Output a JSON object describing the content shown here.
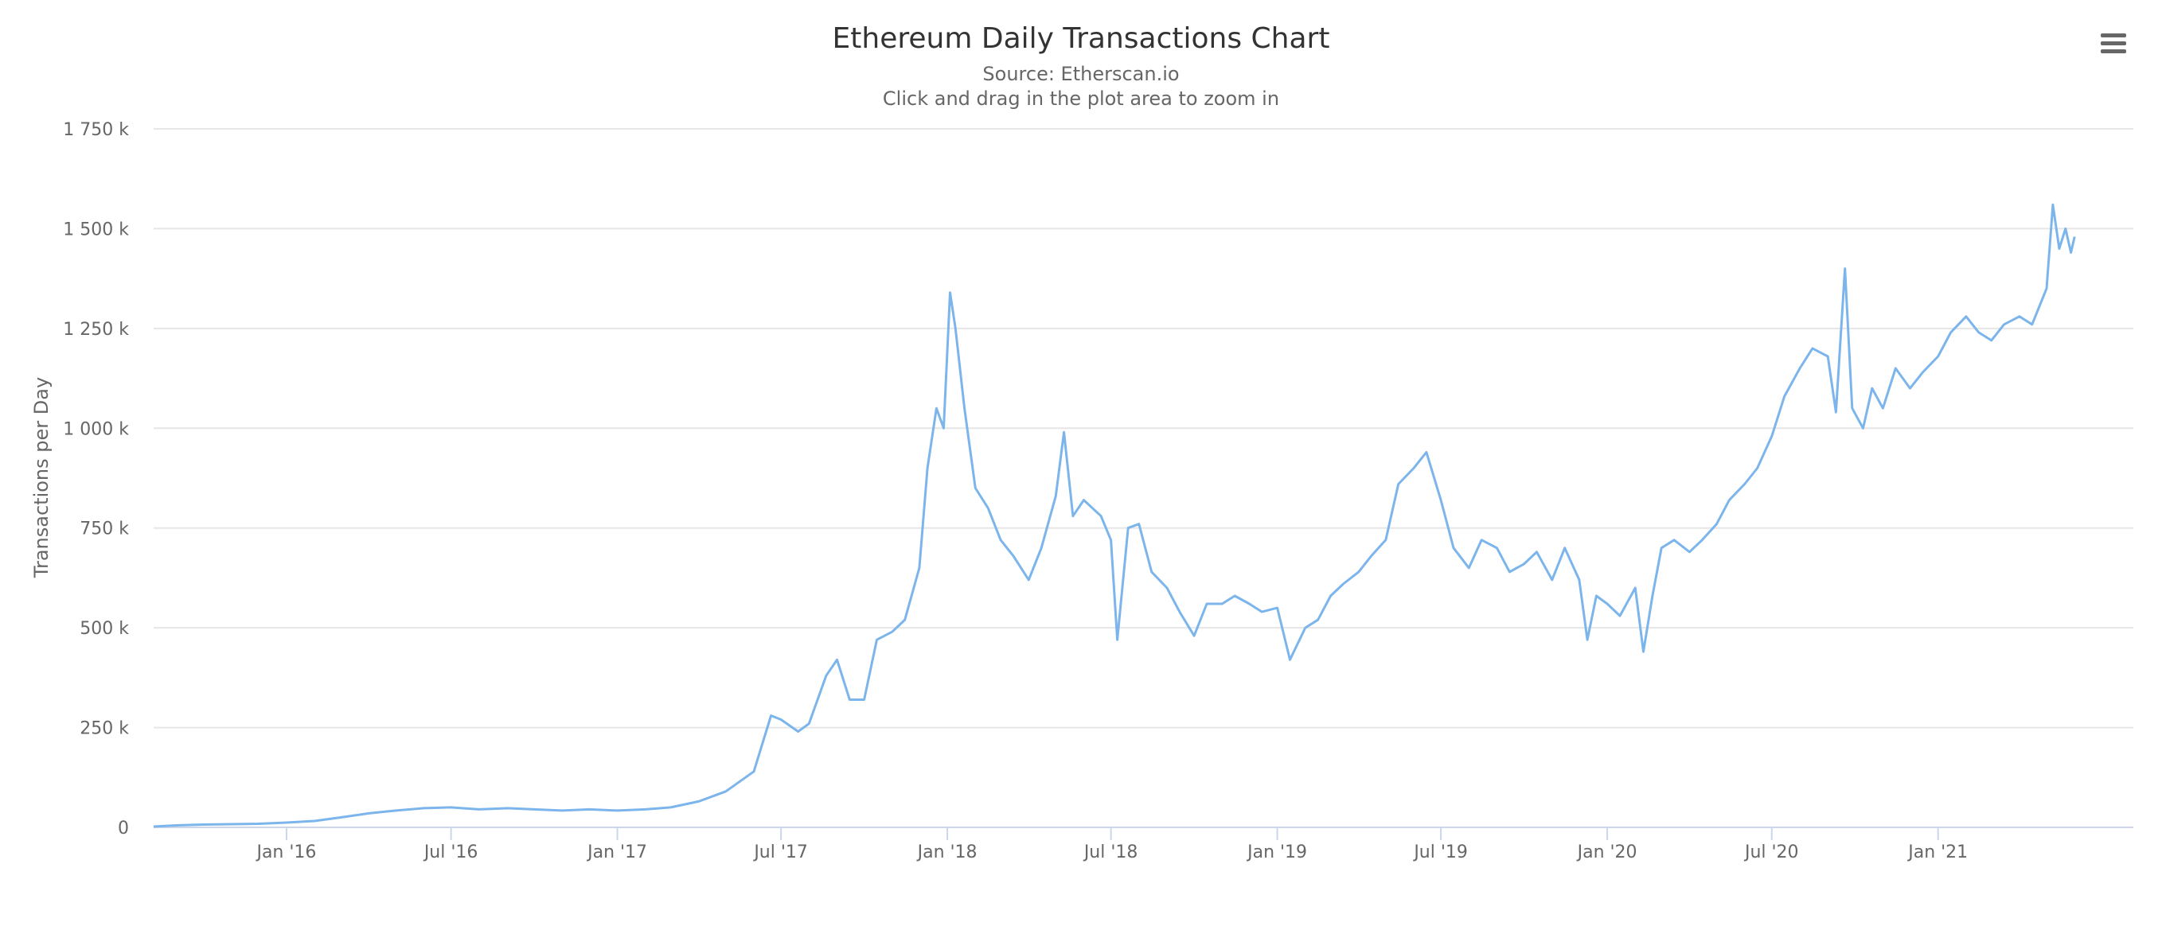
{
  "chart_data": {
    "type": "line",
    "title": "Ethereum Daily Transactions Chart",
    "subtitle": "Source: Etherscan.io",
    "hint": "Click and drag in the plot area to zoom in",
    "xlabel": "",
    "ylabel": "Transactions per Day",
    "ylim": [
      0,
      1750000
    ],
    "xlim": [
      "2015-08-07",
      "2021-08-05"
    ],
    "grid": true,
    "legend": "none",
    "color": "#7cb5ec",
    "y_ticks": [
      {
        "value": 0,
        "label": "0"
      },
      {
        "value": 250000,
        "label": "250 k"
      },
      {
        "value": 500000,
        "label": "500 k"
      },
      {
        "value": 750000,
        "label": "750 k"
      },
      {
        "value": 1000000,
        "label": "1 000 k"
      },
      {
        "value": 1250000,
        "label": "1 250 k"
      },
      {
        "value": 1500000,
        "label": "1 500 k"
      },
      {
        "value": 1750000,
        "label": "1 750 k"
      }
    ],
    "x_ticks": [
      {
        "date": "2016-01-01",
        "label": "Jan '16"
      },
      {
        "date": "2016-07-01",
        "label": "Jul '16"
      },
      {
        "date": "2017-01-01",
        "label": "Jan '17"
      },
      {
        "date": "2017-07-01",
        "label": "Jul '17"
      },
      {
        "date": "2018-01-01",
        "label": "Jan '18"
      },
      {
        "date": "2018-07-01",
        "label": "Jul '18"
      },
      {
        "date": "2019-01-01",
        "label": "Jan '19"
      },
      {
        "date": "2019-07-01",
        "label": "Jul '19"
      },
      {
        "date": "2020-01-01",
        "label": "Jan '20"
      },
      {
        "date": "2020-07-01",
        "label": "Jul '20"
      },
      {
        "date": "2021-01-01",
        "label": "Jan '21"
      }
    ],
    "series": [
      {
        "name": "",
        "points": [
          [
            "2015-08-07",
            2000
          ],
          [
            "2015-09-01",
            5000
          ],
          [
            "2015-10-01",
            7000
          ],
          [
            "2015-11-01",
            8000
          ],
          [
            "2015-12-01",
            9000
          ],
          [
            "2016-01-01",
            12000
          ],
          [
            "2016-02-01",
            16000
          ],
          [
            "2016-03-01",
            25000
          ],
          [
            "2016-04-01",
            35000
          ],
          [
            "2016-05-01",
            42000
          ],
          [
            "2016-06-01",
            48000
          ],
          [
            "2016-07-01",
            50000
          ],
          [
            "2016-08-01",
            45000
          ],
          [
            "2016-09-01",
            48000
          ],
          [
            "2016-10-01",
            45000
          ],
          [
            "2016-11-01",
            42000
          ],
          [
            "2016-12-01",
            45000
          ],
          [
            "2017-01-01",
            42000
          ],
          [
            "2017-02-01",
            45000
          ],
          [
            "2017-03-01",
            50000
          ],
          [
            "2017-04-01",
            65000
          ],
          [
            "2017-05-01",
            90000
          ],
          [
            "2017-06-01",
            140000
          ],
          [
            "2017-06-20",
            280000
          ],
          [
            "2017-07-01",
            270000
          ],
          [
            "2017-07-20",
            240000
          ],
          [
            "2017-08-01",
            260000
          ],
          [
            "2017-08-20",
            380000
          ],
          [
            "2017-09-01",
            420000
          ],
          [
            "2017-09-15",
            320000
          ],
          [
            "2017-10-01",
            320000
          ],
          [
            "2017-10-15",
            470000
          ],
          [
            "2017-11-01",
            490000
          ],
          [
            "2017-11-15",
            520000
          ],
          [
            "2017-12-01",
            650000
          ],
          [
            "2017-12-10",
            900000
          ],
          [
            "2017-12-20",
            1050000
          ],
          [
            "2017-12-28",
            1000000
          ],
          [
            "2018-01-04",
            1340000
          ],
          [
            "2018-01-10",
            1250000
          ],
          [
            "2018-01-20",
            1050000
          ],
          [
            "2018-02-01",
            850000
          ],
          [
            "2018-02-15",
            800000
          ],
          [
            "2018-03-01",
            720000
          ],
          [
            "2018-03-15",
            680000
          ],
          [
            "2018-04-01",
            620000
          ],
          [
            "2018-04-15",
            700000
          ],
          [
            "2018-05-01",
            830000
          ],
          [
            "2018-05-10",
            990000
          ],
          [
            "2018-05-20",
            780000
          ],
          [
            "2018-06-01",
            820000
          ],
          [
            "2018-06-20",
            780000
          ],
          [
            "2018-07-01",
            720000
          ],
          [
            "2018-07-08",
            470000
          ],
          [
            "2018-07-20",
            750000
          ],
          [
            "2018-08-01",
            760000
          ],
          [
            "2018-08-15",
            640000
          ],
          [
            "2018-09-01",
            600000
          ],
          [
            "2018-09-15",
            540000
          ],
          [
            "2018-10-01",
            480000
          ],
          [
            "2018-10-15",
            560000
          ],
          [
            "2018-11-01",
            560000
          ],
          [
            "2018-11-15",
            580000
          ],
          [
            "2018-12-01",
            560000
          ],
          [
            "2018-12-15",
            540000
          ],
          [
            "2019-01-01",
            550000
          ],
          [
            "2019-01-15",
            420000
          ],
          [
            "2019-02-01",
            500000
          ],
          [
            "2019-02-15",
            520000
          ],
          [
            "2019-03-01",
            580000
          ],
          [
            "2019-03-15",
            610000
          ],
          [
            "2019-04-01",
            640000
          ],
          [
            "2019-04-15",
            680000
          ],
          [
            "2019-05-01",
            720000
          ],
          [
            "2019-05-15",
            860000
          ],
          [
            "2019-06-01",
            900000
          ],
          [
            "2019-06-15",
            940000
          ],
          [
            "2019-07-01",
            820000
          ],
          [
            "2019-07-15",
            700000
          ],
          [
            "2019-08-01",
            650000
          ],
          [
            "2019-08-15",
            720000
          ],
          [
            "2019-09-01",
            700000
          ],
          [
            "2019-09-15",
            640000
          ],
          [
            "2019-10-01",
            660000
          ],
          [
            "2019-10-15",
            690000
          ],
          [
            "2019-11-01",
            620000
          ],
          [
            "2019-11-15",
            700000
          ],
          [
            "2019-12-01",
            620000
          ],
          [
            "2019-12-10",
            470000
          ],
          [
            "2019-12-20",
            580000
          ],
          [
            "2020-01-01",
            560000
          ],
          [
            "2020-01-15",
            530000
          ],
          [
            "2020-02-01",
            600000
          ],
          [
            "2020-02-10",
            440000
          ],
          [
            "2020-02-20",
            580000
          ],
          [
            "2020-03-01",
            700000
          ],
          [
            "2020-03-15",
            720000
          ],
          [
            "2020-04-01",
            690000
          ],
          [
            "2020-04-15",
            720000
          ],
          [
            "2020-05-01",
            760000
          ],
          [
            "2020-05-15",
            820000
          ],
          [
            "2020-06-01",
            860000
          ],
          [
            "2020-06-15",
            900000
          ],
          [
            "2020-07-01",
            980000
          ],
          [
            "2020-07-15",
            1080000
          ],
          [
            "2020-08-01",
            1150000
          ],
          [
            "2020-08-15",
            1200000
          ],
          [
            "2020-09-01",
            1180000
          ],
          [
            "2020-09-10",
            1040000
          ],
          [
            "2020-09-20",
            1400000
          ],
          [
            "2020-09-28",
            1050000
          ],
          [
            "2020-10-10",
            1000000
          ],
          [
            "2020-10-20",
            1100000
          ],
          [
            "2020-11-01",
            1050000
          ],
          [
            "2020-11-15",
            1150000
          ],
          [
            "2020-12-01",
            1100000
          ],
          [
            "2020-12-15",
            1140000
          ],
          [
            "2021-01-01",
            1180000
          ],
          [
            "2021-01-15",
            1240000
          ],
          [
            "2021-02-01",
            1280000
          ],
          [
            "2021-02-15",
            1240000
          ],
          [
            "2021-03-01",
            1220000
          ],
          [
            "2021-03-15",
            1260000
          ],
          [
            "2021-04-01",
            1280000
          ],
          [
            "2021-04-15",
            1260000
          ],
          [
            "2021-05-01",
            1350000
          ],
          [
            "2021-05-08",
            1560000
          ],
          [
            "2021-05-15",
            1450000
          ],
          [
            "2021-05-22",
            1500000
          ],
          [
            "2021-05-28",
            1440000
          ],
          [
            "2021-06-01",
            1480000
          ]
        ]
      }
    ]
  },
  "toolbar": {
    "menu_icon": "hamburger-menu-icon"
  }
}
